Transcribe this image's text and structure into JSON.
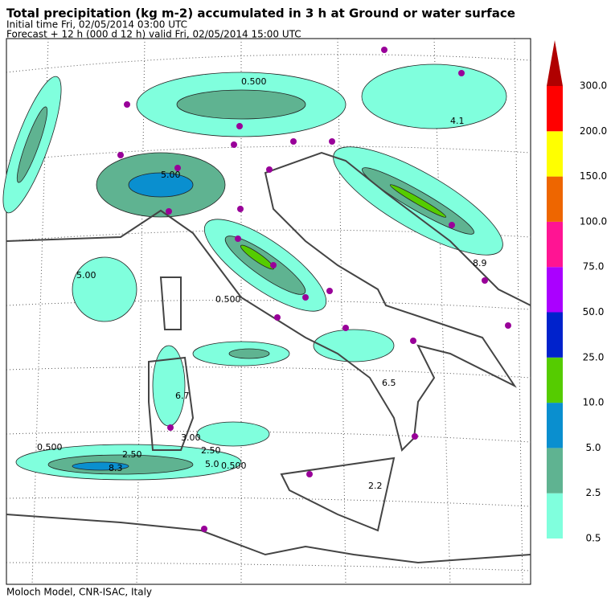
{
  "header": {
    "title": "Total precipitation (kg m-2) accumulated in   3 h at Ground or water surface",
    "initial": "Initial time  Fri, 02/05/2014  03:00 UTC",
    "forecast": "Forecast  +  12 h  (000 d 12 h)  valid Fri, 02/05/2014 15:00 UTC"
  },
  "map": {
    "labels": [
      "0.500",
      "2.50",
      "8.3",
      "5.0",
      "2.50",
      "0.500",
      "3.00",
      "6.7",
      "5.00",
      "0.500",
      "2.2",
      "6.5",
      "8.9",
      "4.1",
      "0.500",
      "5.00"
    ]
  },
  "colorbar": {
    "levels": [
      {
        "value": 0.5,
        "label": "0.5"
      },
      {
        "value": 2.5,
        "label": "2.5"
      },
      {
        "value": 5,
        "label": "5.0"
      },
      {
        "value": 10,
        "label": "10.0"
      },
      {
        "value": 25,
        "label": "25.0"
      },
      {
        "value": 50,
        "label": "50.0"
      },
      {
        "value": 75,
        "label": "75.0"
      },
      {
        "value": 100,
        "label": "100.0"
      },
      {
        "value": 150,
        "label": "150.0"
      },
      {
        "value": 200,
        "label": "200.0"
      },
      {
        "value": 300,
        "label": "300.0"
      }
    ],
    "colors": [
      "#80ffdd",
      "#5fb391",
      "#0a8fcf",
      "#55cc00",
      "#0022cc",
      "#aa00ff",
      "#ff1493",
      "#ee6600",
      "#ffff00",
      "#ff0000",
      "#b00000"
    ]
  },
  "footer": "Moloch Model, CNR-ISAC, Italy"
}
